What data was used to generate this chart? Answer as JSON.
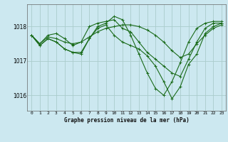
{
  "title": "Graphe pression niveau de la mer (hPa)",
  "bg_color": "#cce8f0",
  "grid_color": "#aacccc",
  "line_color": "#1a6b1a",
  "xlim": [
    -0.5,
    23.5
  ],
  "ylim": [
    1015.55,
    1018.65
  ],
  "yticks": [
    1016,
    1017,
    1018
  ],
  "xticks": [
    0,
    1,
    2,
    3,
    4,
    5,
    6,
    7,
    8,
    9,
    10,
    11,
    12,
    13,
    14,
    15,
    16,
    17,
    18,
    19,
    20,
    21,
    22,
    23
  ],
  "series": [
    [
      1017.75,
      1017.5,
      1017.75,
      1017.8,
      1017.65,
      1017.45,
      1017.55,
      1018.0,
      1018.1,
      1018.15,
      1018.2,
      1017.95,
      1017.85,
      1017.55,
      1017.25,
      1017.05,
      1016.85,
      1016.65,
      1016.55,
      1017.05,
      1017.55,
      1017.95,
      1018.1,
      1018.1
    ],
    [
      1017.75,
      1017.45,
      1017.65,
      1017.55,
      1017.35,
      1017.25,
      1017.25,
      1017.65,
      1017.95,
      1018.05,
      1017.75,
      1017.55,
      1017.45,
      1017.35,
      1017.15,
      1016.85,
      1016.4,
      1015.9,
      1016.25,
      1016.9,
      1017.2,
      1017.8,
      1018.0,
      1018.1
    ],
    [
      1017.75,
      1017.45,
      1017.65,
      1017.55,
      1017.35,
      1017.25,
      1017.2,
      1017.65,
      1018.0,
      1018.1,
      1018.3,
      1018.2,
      1017.75,
      1017.2,
      1016.65,
      1016.2,
      1016.0,
      1016.4,
      1016.95,
      1017.55,
      1017.95,
      1018.1,
      1018.15,
      1018.15
    ],
    [
      1017.75,
      1017.5,
      1017.7,
      1017.65,
      1017.55,
      1017.5,
      1017.55,
      1017.7,
      1017.85,
      1017.95,
      1018.0,
      1018.05,
      1018.05,
      1018.0,
      1017.9,
      1017.75,
      1017.55,
      1017.3,
      1017.1,
      1017.2,
      1017.5,
      1017.75,
      1017.95,
      1018.05
    ]
  ]
}
